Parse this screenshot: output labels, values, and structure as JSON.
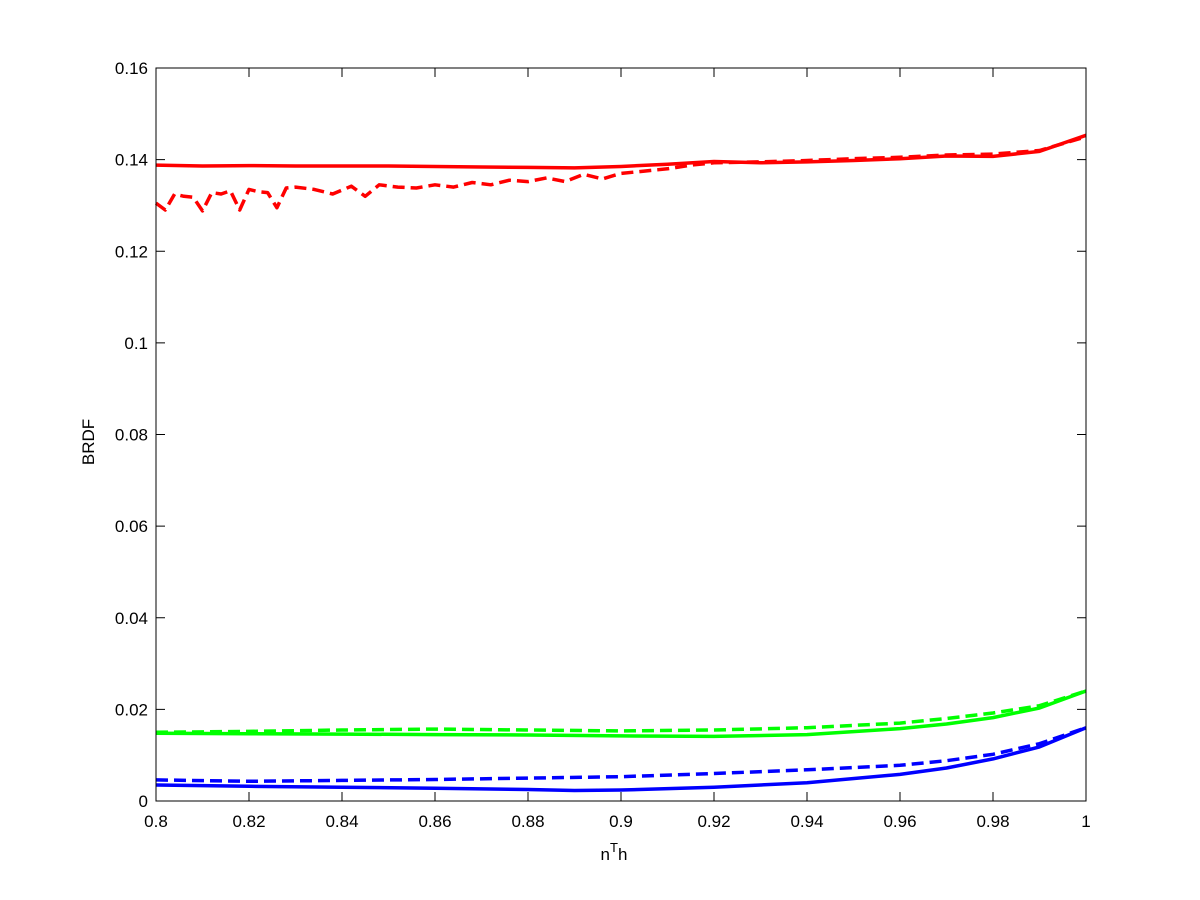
{
  "chart_data": {
    "type": "line",
    "title": "",
    "xlabel": "n",
    "xlabel_superscript": "T",
    "xlabel_suffix": "h",
    "ylabel": "BRDF",
    "xlim": [
      0.8,
      1.0
    ],
    "ylim": [
      0,
      0.16
    ],
    "xticks": [
      0.8,
      0.82,
      0.84,
      0.86,
      0.88,
      0.9,
      0.92,
      0.94,
      0.96,
      0.98,
      1.0
    ],
    "xtick_labels": [
      "0.8",
      "0.82",
      "0.84",
      "0.86",
      "0.88",
      "0.9",
      "0.92",
      "0.94",
      "0.96",
      "0.98",
      "1"
    ],
    "yticks": [
      0,
      0.02,
      0.04,
      0.06,
      0.08,
      0.1,
      0.12,
      0.14,
      0.16
    ],
    "ytick_labels": [
      "0",
      "0.02",
      "0.04",
      "0.06",
      "0.08",
      "0.1",
      "0.12",
      "0.14",
      "0.16"
    ],
    "grid": false,
    "series": [
      {
        "color": "#ff0000",
        "dash": "solid",
        "x": [
          0.8,
          0.81,
          0.82,
          0.83,
          0.84,
          0.85,
          0.86,
          0.87,
          0.88,
          0.89,
          0.9,
          0.91,
          0.92,
          0.93,
          0.94,
          0.95,
          0.96,
          0.97,
          0.98,
          0.99,
          1.0
        ],
        "y": [
          0.1388,
          0.1386,
          0.1387,
          0.1386,
          0.1386,
          0.1386,
          0.1385,
          0.1384,
          0.1383,
          0.1382,
          0.1385,
          0.139,
          0.1396,
          0.1393,
          0.1395,
          0.1398,
          0.1402,
          0.1408,
          0.1407,
          0.1418,
          0.1453
        ]
      },
      {
        "color": "#ff0000",
        "dash": "dashed",
        "x": [
          0.8,
          0.802,
          0.804,
          0.806,
          0.808,
          0.81,
          0.812,
          0.814,
          0.816,
          0.818,
          0.82,
          0.822,
          0.824,
          0.826,
          0.828,
          0.83,
          0.834,
          0.838,
          0.842,
          0.845,
          0.848,
          0.852,
          0.856,
          0.86,
          0.864,
          0.868,
          0.872,
          0.876,
          0.88,
          0.884,
          0.888,
          0.892,
          0.896,
          0.9,
          0.905,
          0.91,
          0.915,
          0.92,
          0.93,
          0.94,
          0.95,
          0.96,
          0.97,
          0.98,
          0.99,
          1.0
        ],
        "y": [
          0.1305,
          0.129,
          0.1325,
          0.132,
          0.1318,
          0.1288,
          0.1328,
          0.1325,
          0.1332,
          0.129,
          0.1335,
          0.133,
          0.1328,
          0.1295,
          0.1338,
          0.134,
          0.1335,
          0.1325,
          0.1342,
          0.132,
          0.1345,
          0.134,
          0.1338,
          0.1345,
          0.134,
          0.135,
          0.1345,
          0.1355,
          0.1352,
          0.136,
          0.1352,
          0.1368,
          0.1358,
          0.137,
          0.1375,
          0.138,
          0.1388,
          0.1393,
          0.1395,
          0.1398,
          0.1402,
          0.1405,
          0.141,
          0.1412,
          0.142,
          0.145
        ]
      },
      {
        "color": "#00ff00",
        "dash": "solid",
        "x": [
          0.8,
          0.82,
          0.84,
          0.86,
          0.88,
          0.9,
          0.92,
          0.94,
          0.96,
          0.97,
          0.98,
          0.99,
          1.0
        ],
        "y": [
          0.0148,
          0.0147,
          0.0146,
          0.0145,
          0.0144,
          0.0142,
          0.0141,
          0.0145,
          0.0158,
          0.0168,
          0.0182,
          0.0203,
          0.024
        ]
      },
      {
        "color": "#00ff00",
        "dash": "dashed",
        "x": [
          0.8,
          0.82,
          0.84,
          0.86,
          0.88,
          0.9,
          0.92,
          0.94,
          0.96,
          0.97,
          0.98,
          0.99,
          1.0
        ],
        "y": [
          0.015,
          0.0152,
          0.0155,
          0.0157,
          0.0155,
          0.0153,
          0.0155,
          0.016,
          0.017,
          0.018,
          0.0192,
          0.0208,
          0.024
        ]
      },
      {
        "color": "#0000ff",
        "dash": "solid",
        "x": [
          0.8,
          0.82,
          0.84,
          0.86,
          0.88,
          0.89,
          0.9,
          0.92,
          0.94,
          0.96,
          0.97,
          0.98,
          0.99,
          1.0
        ],
        "y": [
          0.0035,
          0.0032,
          0.003,
          0.0028,
          0.0025,
          0.0023,
          0.0024,
          0.003,
          0.004,
          0.0058,
          0.0072,
          0.0092,
          0.0118,
          0.016
        ]
      },
      {
        "color": "#0000ff",
        "dash": "dashed",
        "x": [
          0.8,
          0.82,
          0.84,
          0.86,
          0.88,
          0.9,
          0.92,
          0.94,
          0.96,
          0.97,
          0.98,
          0.99,
          1.0
        ],
        "y": [
          0.0046,
          0.0043,
          0.0045,
          0.0047,
          0.005,
          0.0053,
          0.006,
          0.0068,
          0.0078,
          0.0088,
          0.0102,
          0.0125,
          0.016
        ]
      }
    ]
  }
}
